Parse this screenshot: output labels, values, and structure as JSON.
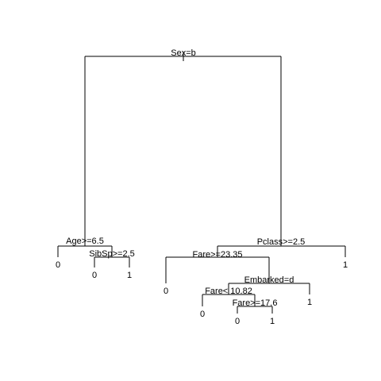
{
  "tree": {
    "nodes": [
      {
        "id": "root",
        "label": "Sex=b",
        "children": [
          "age",
          "pclass"
        ]
      },
      {
        "id": "age",
        "label": "Age>=6.5",
        "children": [
          "age_l",
          "sibsp"
        ]
      },
      {
        "id": "age_l",
        "label": "0"
      },
      {
        "id": "sibsp",
        "label": "SibSp>=2.5",
        "children": [
          "sibsp_l",
          "sibsp_r"
        ]
      },
      {
        "id": "sibsp_l",
        "label": "0"
      },
      {
        "id": "sibsp_r",
        "label": "1"
      },
      {
        "id": "pclass",
        "label": "Pclass>=2.5",
        "children": [
          "fare1",
          "pclass_r"
        ]
      },
      {
        "id": "pclass_r",
        "label": "1"
      },
      {
        "id": "fare1",
        "label": "Fare>=23.35",
        "children": [
          "fare1_l",
          "emb"
        ]
      },
      {
        "id": "fare1_l",
        "label": "0"
      },
      {
        "id": "emb",
        "label": "Embarked=d",
        "children": [
          "fare2",
          "emb_r"
        ]
      },
      {
        "id": "emb_r",
        "label": "1"
      },
      {
        "id": "fare2",
        "label": "Fare< 10.82",
        "children": [
          "fare2_l",
          "fare3"
        ]
      },
      {
        "id": "fare2_l",
        "label": "0"
      },
      {
        "id": "fare3",
        "label": "Fare>=17.6",
        "children": [
          "fare3_l",
          "fare3_r"
        ]
      },
      {
        "id": "fare3_l",
        "label": "0"
      },
      {
        "id": "fare3_r",
        "label": "1"
      }
    ]
  }
}
